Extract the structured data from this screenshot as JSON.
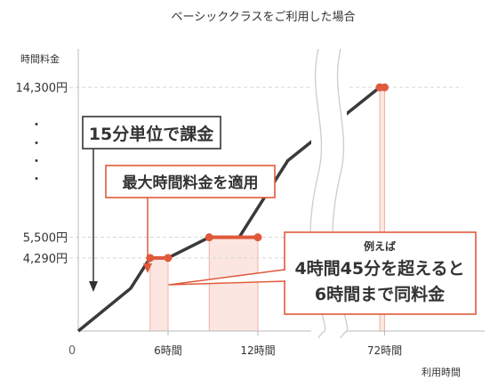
{
  "chart_data": {
    "type": "line",
    "title": "ベーシッククラスをご利用した場合",
    "ylabel": "時間料金",
    "xlabel": "利用時間",
    "origin_label": "0",
    "y_ticks": [
      {
        "value": 4290,
        "label": "4,290円"
      },
      {
        "value": 5500,
        "label": "5,500円"
      },
      {
        "value": 14300,
        "label": "14,300円"
      }
    ],
    "y_ellipsis": "・",
    "x_ticks": [
      {
        "value": 6,
        "label": "6時間"
      },
      {
        "value": 12,
        "label": "12時間"
      },
      {
        "value": 72,
        "label": "72時間"
      }
    ],
    "x_axis_break": true,
    "series": [
      {
        "color": "#3a3a3a",
        "points": [
          [
            0,
            0
          ],
          [
            2,
            1430
          ],
          [
            3.5,
            2503
          ],
          [
            4.8,
            4290
          ],
          [
            6,
            4290
          ],
          [
            8.75,
            5500
          ],
          [
            10.75,
            5500
          ],
          [
            14,
            10000
          ],
          [
            68,
            14300
          ],
          [
            72,
            14300
          ]
        ]
      }
    ],
    "cap_segments": [
      {
        "x": [
          4.8,
          6
        ],
        "y": 4290
      },
      {
        "x": [
          8.75,
          12
        ],
        "y": 5500
      },
      {
        "x": [
          68,
          72
        ],
        "y": 14300
      }
    ],
    "highlight_color": "#e0593b",
    "fill_color": "#fbe6e1",
    "annotations": [
      {
        "name": "per-15min",
        "text": "15分単位で課金",
        "style": "dark"
      },
      {
        "name": "max-rate",
        "text": "最大時間料金を適用",
        "style": "accent"
      },
      {
        "name": "example",
        "lines": [
          "例えば",
          "4時間45分を超えると",
          "6時間まで同料金"
        ],
        "style": "accent"
      }
    ]
  }
}
